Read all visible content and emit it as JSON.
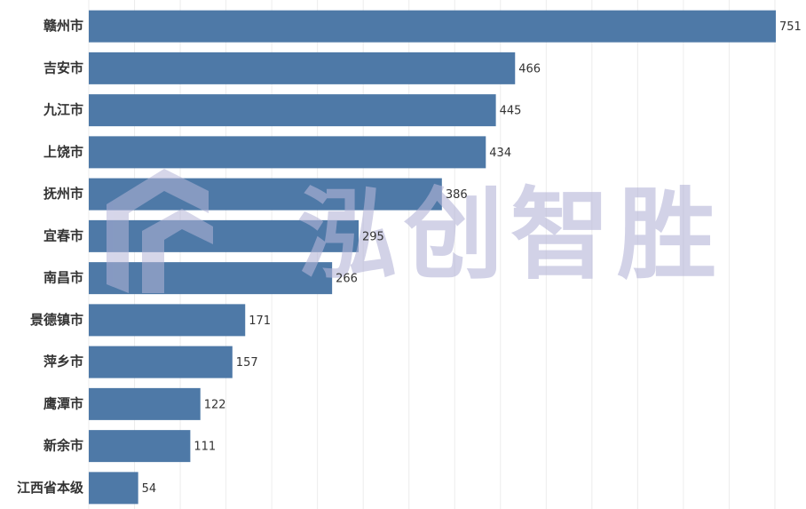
{
  "chart_data": {
    "type": "hbar",
    "categories": [
      "赣州市",
      "吉安市",
      "九江市",
      "上饶市",
      "抚州市",
      "宜春市",
      "南昌市",
      "景德镇市",
      "萍乡市",
      "鹰潭市",
      "新余市",
      "江西省本级"
    ],
    "values": [
      751,
      466,
      445,
      434,
      386,
      295,
      266,
      171,
      157,
      122,
      111,
      54
    ],
    "color": "#4e79a7",
    "xlim": [
      0,
      784
    ],
    "xticks": [
      0,
      50,
      100,
      150,
      200,
      250,
      300,
      350,
      400,
      450,
      500,
      550,
      600,
      650,
      700,
      750
    ],
    "grid": true,
    "watermark": "泓创智胜"
  }
}
